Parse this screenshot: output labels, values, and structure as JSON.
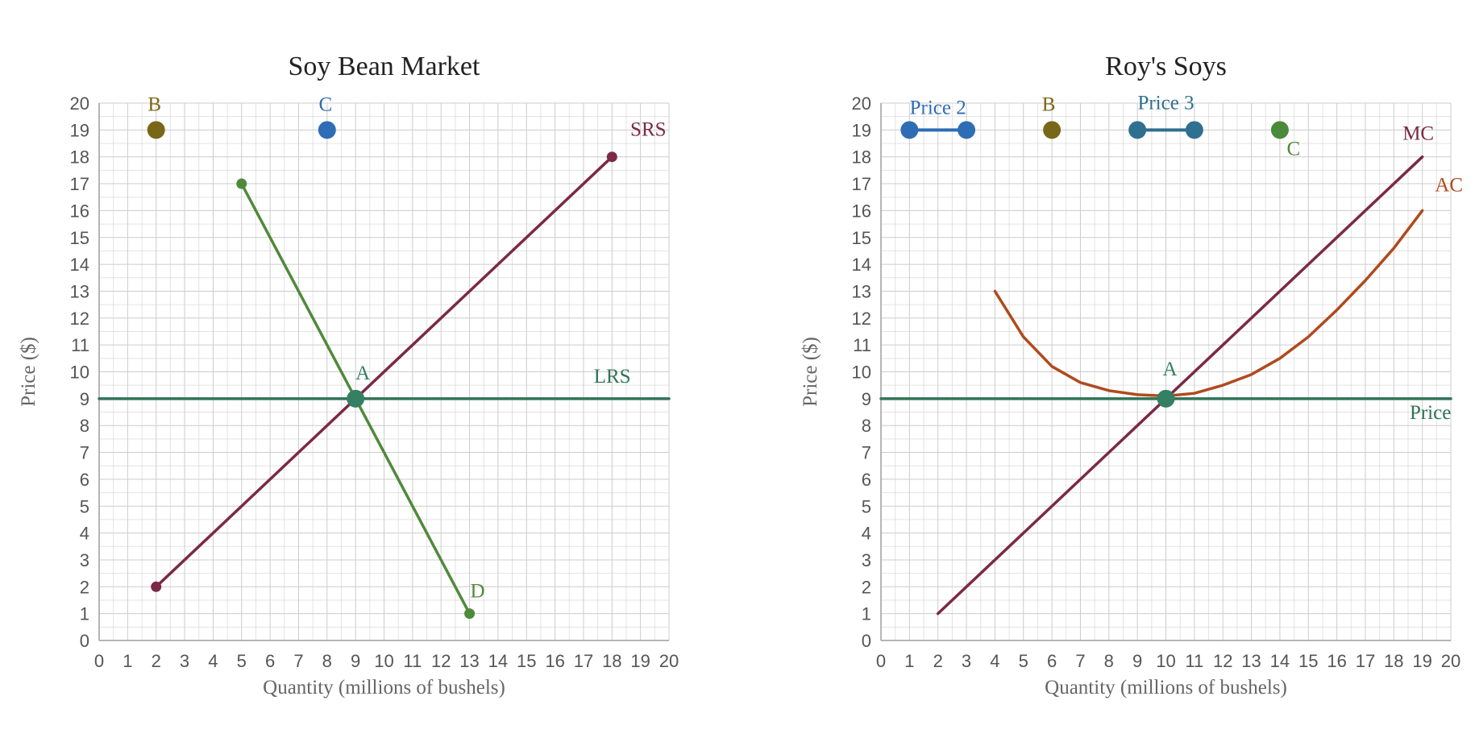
{
  "chart_data": [
    {
      "type": "line",
      "title": "Soy Bean Market",
      "xlabel": "Quantity (millions of bushels)",
      "ylabel": "Price ($)",
      "xlim": [
        0,
        20
      ],
      "ylim": [
        0,
        20
      ],
      "grid": true,
      "series": [
        {
          "name": "SRS",
          "color": "#7b2946",
          "x": [
            2,
            18
          ],
          "y": [
            2,
            18
          ],
          "show_endpoints": true
        },
        {
          "name": "D",
          "color": "#4f8a3a",
          "x": [
            5,
            13
          ],
          "y": [
            17,
            1
          ],
          "show_endpoints": true
        },
        {
          "name": "LRS",
          "color": "#2f7356",
          "x": [
            0,
            20
          ],
          "y": [
            9,
            9
          ],
          "show_endpoints": false
        }
      ],
      "points": [
        {
          "label": "A",
          "x": 9,
          "y": 9,
          "color": "#357f62"
        },
        {
          "label": "B",
          "x": 2,
          "y": 19,
          "color": "#7a6618"
        },
        {
          "label": "C",
          "x": 8,
          "y": 19,
          "color": "#2e6db4"
        }
      ],
      "ranges": [],
      "annotations": [
        {
          "text": "SRS",
          "x": 18,
          "y": 18,
          "color": "#7b2946"
        },
        {
          "text": "D",
          "x": 13,
          "y": 1,
          "color": "#4f8a3a"
        },
        {
          "text": "LRS",
          "x": 19,
          "y": 9,
          "color": "#2f7356"
        },
        {
          "text": "A",
          "x": 9,
          "y": 9,
          "color": "#357f62"
        },
        {
          "text": "B",
          "x": 2,
          "y": 19,
          "color": "#7a6618"
        },
        {
          "text": "C",
          "x": 8,
          "y": 19,
          "color": "#2e6db4"
        }
      ]
    },
    {
      "type": "line",
      "title": "Roy's Soys",
      "xlabel": "Quantity (millions of bushels)",
      "ylabel": "Price ($)",
      "xlim": [
        0,
        20
      ],
      "ylim": [
        0,
        20
      ],
      "grid": true,
      "series": [
        {
          "name": "MC",
          "color": "#7b2946",
          "x": [
            2,
            19
          ],
          "y": [
            1,
            18
          ],
          "show_endpoints": false
        },
        {
          "name": "AC",
          "color": "#b04a1e",
          "x": [
            4,
            5,
            6,
            7,
            8,
            9,
            10,
            11,
            12,
            13,
            14,
            15,
            16,
            17,
            18,
            19
          ],
          "y": [
            13,
            11.3,
            10.2,
            9.6,
            9.3,
            9.15,
            9.1,
            9.2,
            9.5,
            9.9,
            10.5,
            11.3,
            12.3,
            13.4,
            14.6,
            16
          ],
          "show_endpoints": false
        },
        {
          "name": "Price",
          "color": "#2f7356",
          "x": [
            0,
            20
          ],
          "y": [
            9,
            9
          ],
          "show_endpoints": false
        }
      ],
      "points": [
        {
          "label": "A",
          "x": 10,
          "y": 9,
          "color": "#357f62"
        },
        {
          "label": "B",
          "x": 6,
          "y": 19,
          "color": "#7a6618"
        },
        {
          "label": "C",
          "x": 14,
          "y": 19,
          "color": "#4a8a3a"
        }
      ],
      "ranges": [
        {
          "label": "Price 2",
          "x": [
            1,
            3
          ],
          "y": 19,
          "color": "#2e6db4"
        },
        {
          "label": "Price 3",
          "x": [
            9,
            11
          ],
          "y": 19,
          "color": "#2f6f8f"
        }
      ],
      "annotations": [
        {
          "text": "MC",
          "x": 19,
          "y": 18,
          "color": "#7b2946"
        },
        {
          "text": "AC",
          "x": 19,
          "y": 16,
          "color": "#b04a1e"
        },
        {
          "text": "Price",
          "x": 19,
          "y": 9,
          "color": "#2f7356"
        },
        {
          "text": "A",
          "x": 10,
          "y": 9,
          "color": "#357f62"
        },
        {
          "text": "B",
          "x": 6,
          "y": 19,
          "color": "#7a6618"
        },
        {
          "text": "C",
          "x": 14,
          "y": 19,
          "color": "#4a8a3a"
        },
        {
          "text": "Price 2",
          "x": 2,
          "y": 19,
          "color": "#2e6db4"
        },
        {
          "text": "Price 3",
          "x": 10,
          "y": 19,
          "color": "#2f6f8f"
        }
      ]
    }
  ]
}
